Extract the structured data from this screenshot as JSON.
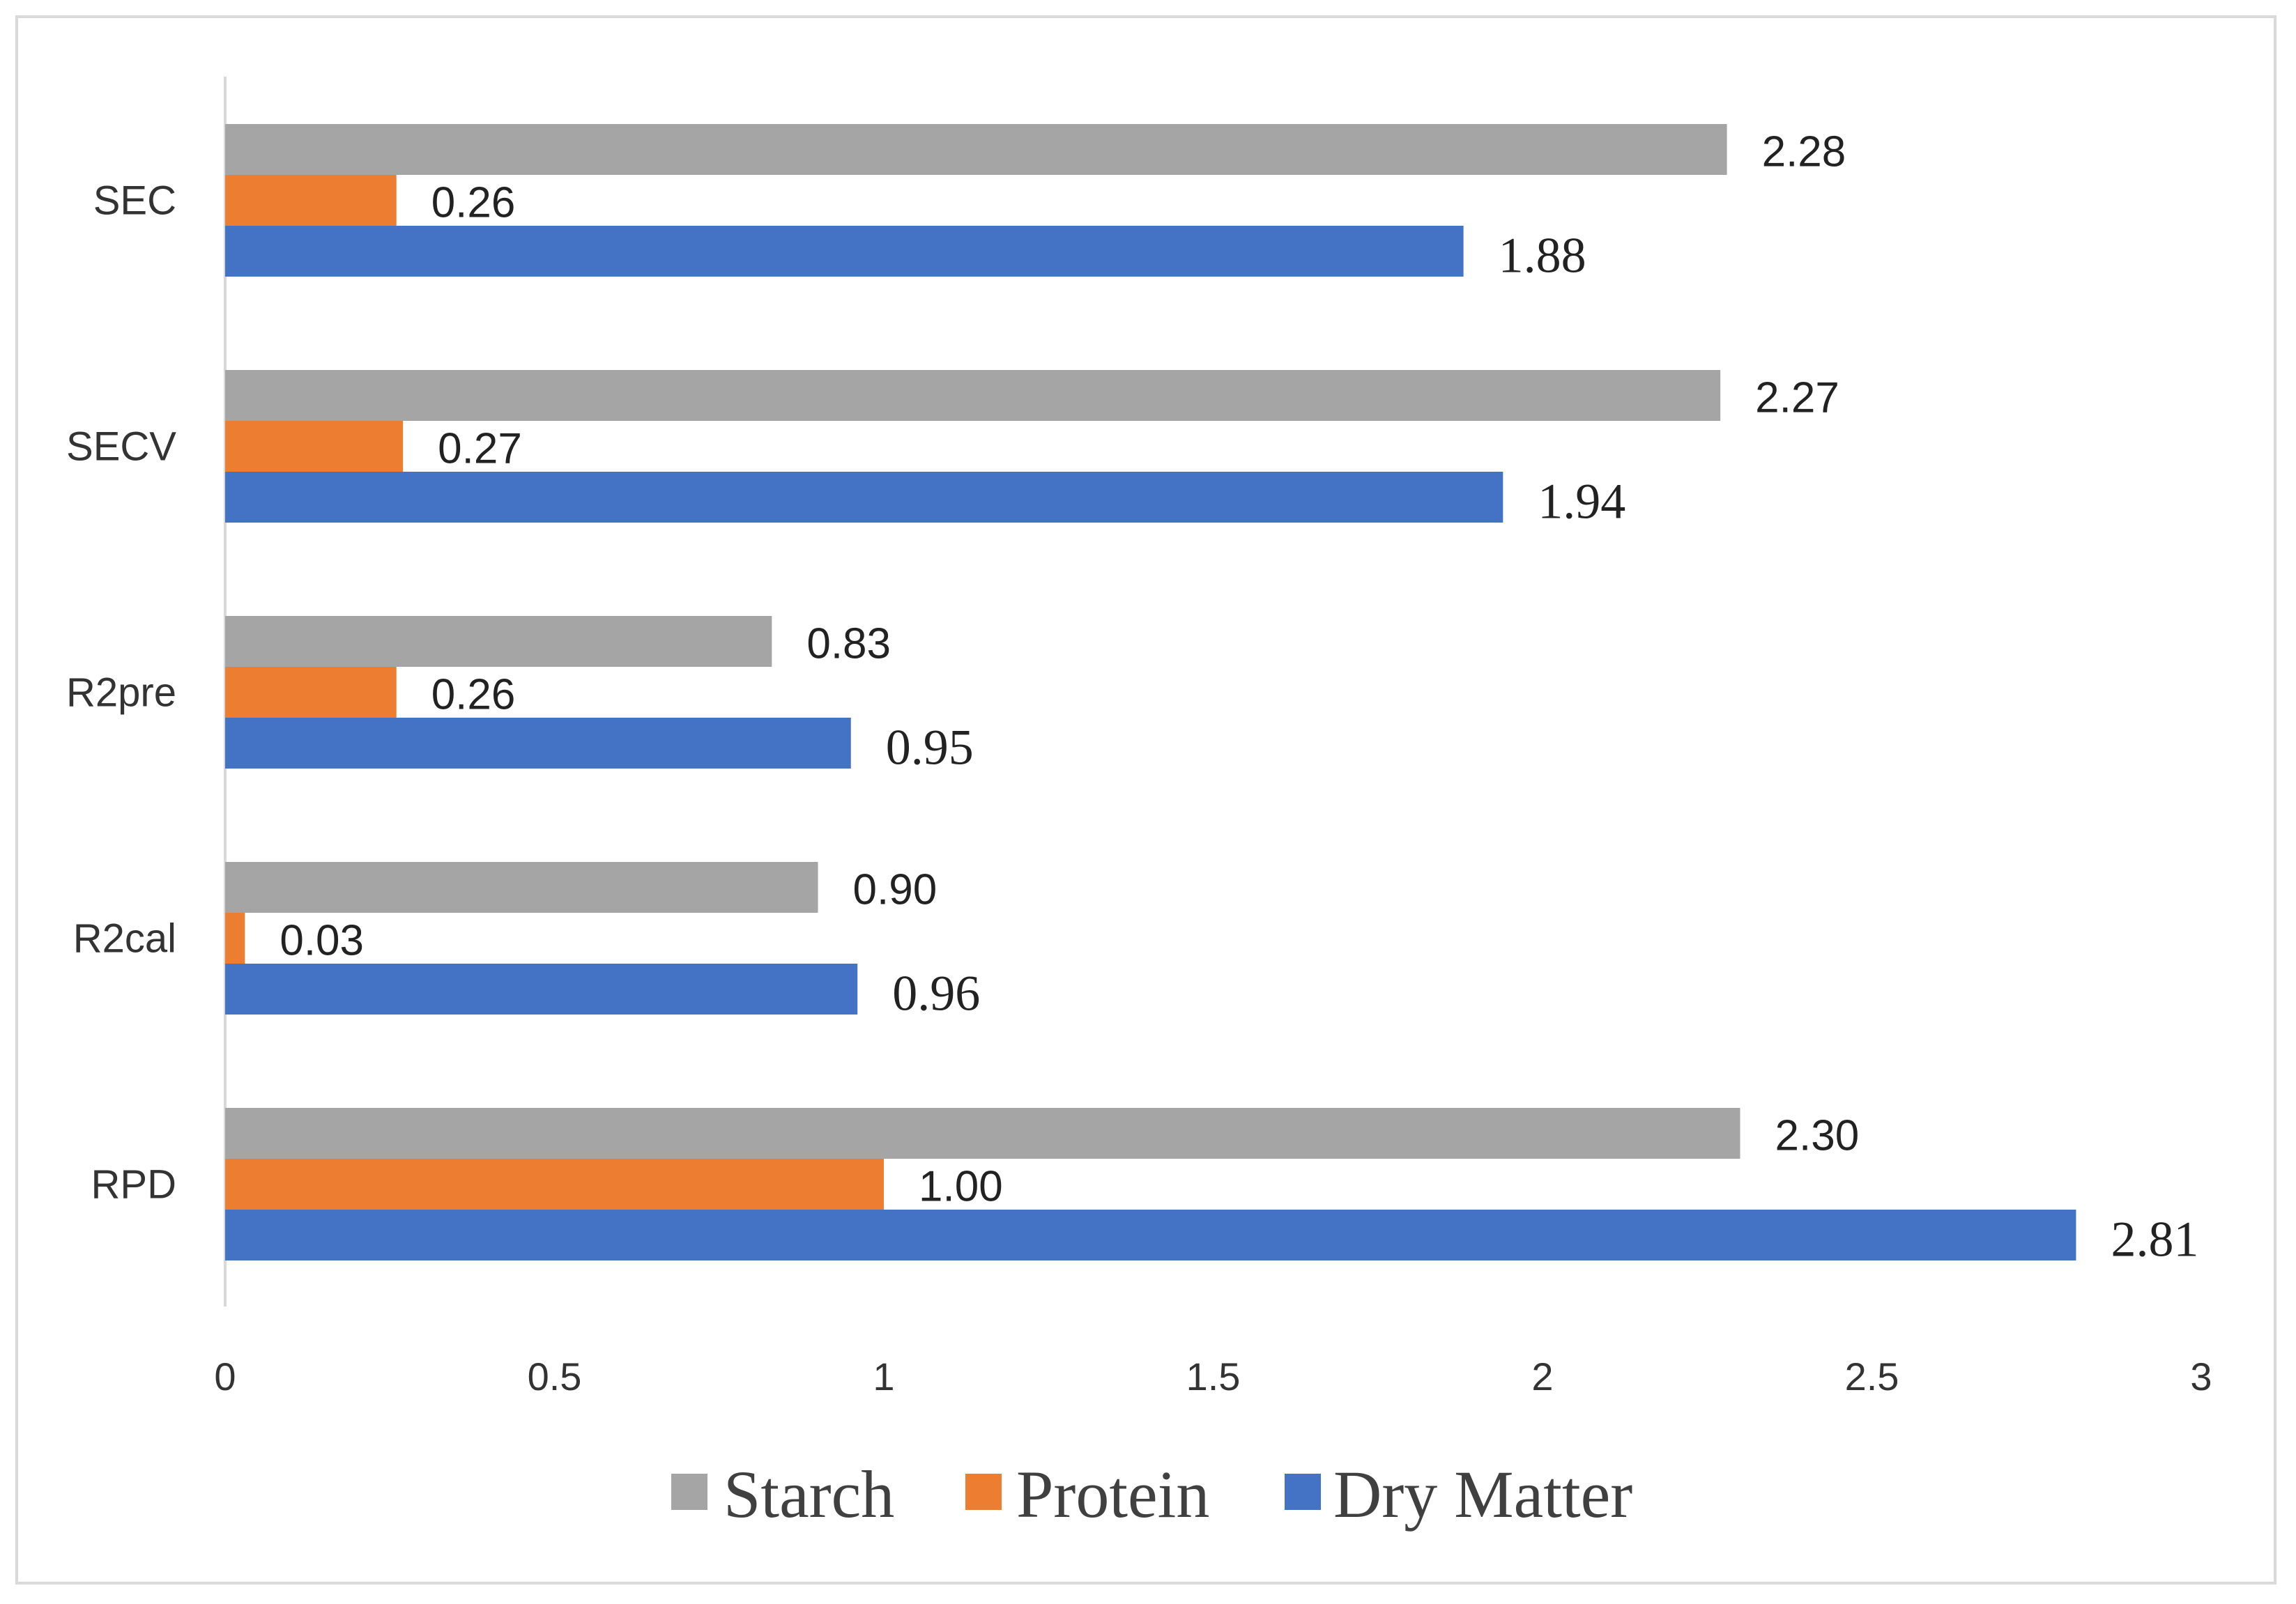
{
  "chart_data": {
    "type": "bar",
    "orientation": "horizontal",
    "categories": [
      "SEC",
      "SECV",
      "R2pre",
      "R2cal",
      "RPD"
    ],
    "series": [
      {
        "name": "Starch",
        "color": "#a5a5a5",
        "values": [
          2.28,
          2.27,
          0.83,
          0.9,
          2.3
        ],
        "labels": [
          "2.28",
          "2.27",
          "0.83",
          "0.90",
          "2.30"
        ]
      },
      {
        "name": "Protein",
        "color": "#ed7d31",
        "values": [
          0.26,
          0.27,
          0.26,
          0.03,
          1.0
        ],
        "labels": [
          "0.26",
          "0.27",
          "0.26",
          "0.03",
          "1.00"
        ]
      },
      {
        "name": "Dry Matter",
        "color": "#4472c4",
        "values": [
          1.88,
          1.94,
          0.95,
          0.96,
          2.81
        ],
        "labels": [
          "1.88",
          "1.94",
          "0.95",
          "0.96",
          "2.81"
        ]
      }
    ],
    "xlim": [
      0,
      3
    ],
    "xticks": [
      "0",
      "0.5",
      "1",
      "1.5",
      "2",
      "2.5",
      "3"
    ],
    "legend_position": "bottom",
    "grid": false
  }
}
